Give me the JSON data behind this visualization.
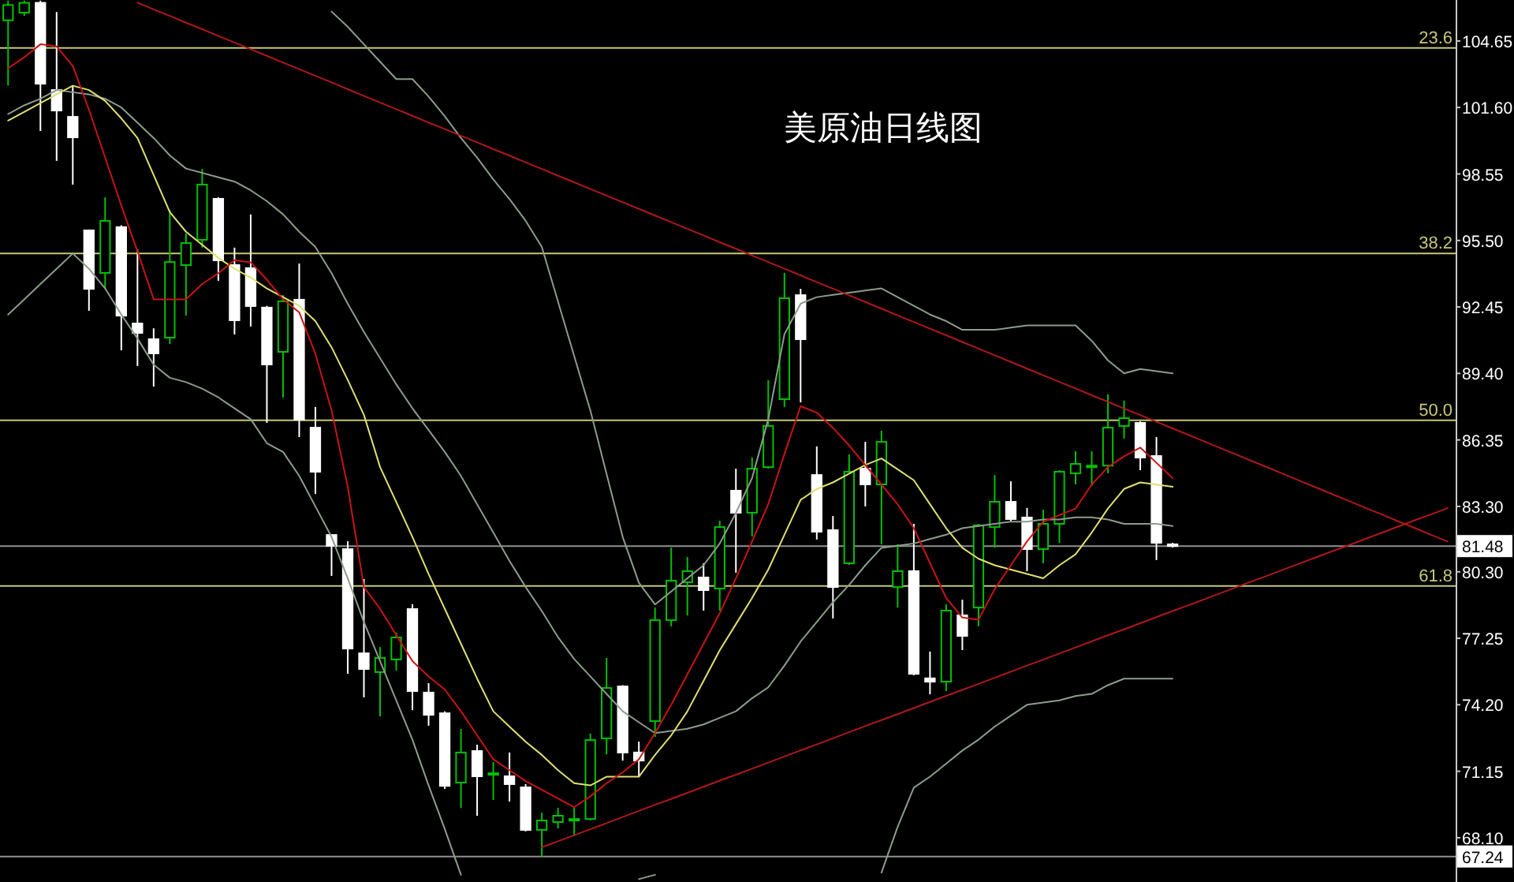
{
  "chart_data": {
    "type": "candlestick",
    "title": "美原油日线图",
    "categories": [
      null,
      null,
      null,
      null,
      null,
      null,
      null,
      null,
      null,
      null,
      null,
      null,
      null,
      null,
      null,
      null,
      null,
      null,
      null,
      null,
      null,
      null,
      null,
      null,
      null,
      null,
      null,
      null,
      null,
      null,
      null,
      null,
      null,
      null,
      null,
      null,
      null,
      null,
      null,
      null,
      null,
      null,
      null,
      null,
      null,
      null,
      null,
      null,
      null,
      null,
      null,
      null,
      null,
      null,
      null,
      null,
      null,
      null,
      null,
      null,
      null,
      null,
      null,
      null,
      null,
      null,
      null,
      null,
      null,
      null,
      null,
      null,
      null,
      null,
      null,
      null,
      null,
      null,
      null,
      null,
      null,
      null,
      null,
      null,
      null,
      null,
      null,
      null,
      null,
      null
    ],
    "ohlc": [
      [
        105.6,
        106.5,
        102.6,
        106.3
      ],
      [
        105.95,
        106.5,
        105.8,
        106.4
      ],
      [
        106.4,
        106.5,
        100.52,
        102.69
      ],
      [
        102.4,
        105.98,
        99.15,
        101.46
      ],
      [
        101.17,
        102.62,
        98.06,
        100.23
      ],
      [
        95.96,
        96.0,
        92.27,
        93.28
      ],
      [
        94.01,
        97.48,
        93.28,
        96.4
      ],
      [
        96.11,
        96.2,
        90.46,
        92.05
      ],
      [
        91.69,
        95.09,
        89.74,
        91.26
      ],
      [
        90.97,
        91.47,
        88.8,
        90.32
      ],
      [
        91.04,
        96.9,
        90.75,
        94.51
      ],
      [
        94.37,
        95.82,
        92.05,
        95.38
      ],
      [
        95.53,
        98.78,
        95.17,
        98.06
      ],
      [
        97.41,
        97.48,
        93.65,
        94.59
      ],
      [
        94.37,
        95.17,
        91.19,
        91.84
      ],
      [
        94.23,
        96.69,
        91.55,
        92.49
      ],
      [
        92.42,
        92.5,
        87.13,
        89.81
      ],
      [
        90.39,
        92.99,
        88.29,
        92.71
      ],
      [
        92.78,
        94.44,
        86.48,
        87.28
      ],
      [
        86.91,
        87.86,
        83.87,
        84.89
      ],
      [
        81.99,
        82.0,
        80.11,
        81.49
      ],
      [
        81.34,
        81.7,
        75.62,
        76.78
      ],
      [
        76.56,
        79.97,
        74.54,
        75.84
      ],
      [
        75.7,
        76.85,
        73.67,
        76.35
      ],
      [
        76.28,
        77.51,
        75.77,
        77.29
      ],
      [
        78.59,
        78.81,
        73.96,
        74.83
      ],
      [
        74.76,
        75.19,
        73.24,
        73.74
      ],
      [
        73.81,
        73.9,
        70.34,
        70.48
      ],
      [
        70.63,
        73.09,
        69.47,
        72.01
      ],
      [
        72.08,
        72.37,
        69.11,
        70.92
      ],
      [
        70.99,
        71.57,
        69.83,
        71.06
      ],
      [
        70.92,
        72.01,
        69.76,
        70.56
      ],
      [
        70.41,
        70.56,
        68.39,
        68.46
      ],
      [
        68.46,
        69.25,
        67.24,
        68.89
      ],
      [
        68.82,
        69.47,
        68.53,
        69.11
      ],
      [
        68.89,
        69.47,
        68.17,
        68.96
      ],
      [
        68.96,
        72.87,
        68.89,
        72.58
      ],
      [
        72.66,
        76.35,
        71.93,
        74.97
      ],
      [
        75.04,
        75.1,
        71.64,
        72.01
      ],
      [
        72.01,
        72.51,
        70.92,
        71.64
      ],
      [
        73.45,
        78.66,
        72.73,
        78.08
      ],
      [
        78.08,
        81.41,
        77.8,
        79.89
      ],
      [
        79.82,
        80.98,
        78.3,
        80.33
      ],
      [
        80.04,
        80.69,
        78.52,
        79.46
      ],
      [
        79.53,
        82.64,
        78.52,
        82.35
      ],
      [
        84.02,
        85.03,
        80.26,
        83.01
      ],
      [
        83.01,
        85.54,
        81.92,
        85.03
      ],
      [
        85.1,
        89.09,
        85.03,
        86.99
      ],
      [
        88.22,
        94.01,
        87.86,
        92.85
      ],
      [
        92.99,
        93.28,
        88.07,
        90.97
      ],
      [
        84.74,
        86.05,
        81.78,
        82.14
      ],
      [
        82.21,
        82.86,
        78.16,
        79.6
      ],
      [
        80.69,
        85.68,
        80.62,
        84.89
      ],
      [
        85.03,
        86.26,
        83.3,
        84.31
      ],
      [
        84.31,
        86.77,
        81.56,
        86.26
      ],
      [
        79.6,
        81.56,
        78.66,
        80.33
      ],
      [
        80.33,
        82.5,
        75.55,
        75.62
      ],
      [
        75.41,
        76.64,
        74.68,
        75.26
      ],
      [
        75.26,
        78.81,
        74.83,
        78.52
      ],
      [
        78.3,
        79.02,
        76.71,
        77.36
      ],
      [
        78.66,
        82.5,
        77.8,
        82.43
      ],
      [
        82.35,
        84.74,
        81.41,
        83.51
      ],
      [
        83.51,
        84.45,
        82.6,
        82.72
      ],
      [
        82.79,
        83.23,
        80.33,
        81.34
      ],
      [
        81.34,
        83.15,
        80.69,
        82.5
      ],
      [
        82.5,
        84.96,
        81.63,
        84.89
      ],
      [
        84.82,
        85.83,
        84.31,
        85.25
      ],
      [
        85.1,
        85.83,
        84.24,
        85.17
      ],
      [
        85.17,
        88.44,
        84.82,
        86.91
      ],
      [
        86.99,
        88.15,
        86.41,
        87.35
      ],
      [
        87.13,
        87.2,
        84.96,
        85.54
      ],
      [
        85.61,
        86.48,
        80.84,
        81.63
      ],
      [
        81.56,
        81.63,
        81.41,
        81.48
      ],
      null,
      null,
      null,
      null,
      null,
      null,
      null,
      null,
      null,
      null,
      null,
      null,
      null,
      null,
      null,
      null,
      null
    ],
    "colors": [
      "#00c000",
      "#00c000",
      "#ffffff",
      "#ffffff",
      "#ffffff",
      "#ffffff",
      "#00c000",
      "#ffffff",
      "#ffffff",
      "#ffffff",
      "#00c000",
      "#00c000",
      "#00c000",
      "#ffffff",
      "#ffffff",
      "#ffffff",
      "#ffffff",
      "#00c000",
      "#ffffff",
      "#ffffff",
      "#ffffff",
      "#ffffff",
      "#ffffff",
      "#00c000",
      "#00c000",
      "#ffffff",
      "#ffffff",
      "#ffffff",
      "#00c000",
      "#ffffff",
      "#00c000",
      "#ffffff",
      "#ffffff",
      "#00c000",
      "#00c000",
      "#00c000",
      "#00c000",
      "#00c000",
      "#ffffff",
      "#ffffff",
      "#00c000",
      "#00c000",
      "#00c000",
      "#ffffff",
      "#00c000",
      "#ffffff",
      "#00c000",
      "#00c000",
      "#00c000",
      "#ffffff",
      "#ffffff",
      "#ffffff",
      "#00c000",
      "#ffffff",
      "#00c000",
      "#00c000",
      "#ffffff",
      "#ffffff",
      "#00c000",
      "#ffffff",
      "#00c000",
      "#00c000",
      "#ffffff",
      "#ffffff",
      "#00c000",
      "#00c000",
      "#00c000",
      "#00c000",
      "#00c000",
      "#00c000",
      "#ffffff",
      "#ffffff",
      "#ffffff",
      null,
      null,
      null,
      null,
      null,
      null,
      null,
      null,
      null,
      null,
      null,
      null,
      null,
      null,
      null,
      null,
      null
    ],
    "series": [
      {
        "type": "line",
        "color": "#8c9c8c",
        "values": [
          null,
          null,
          null,
          null,
          null,
          null,
          null,
          null,
          null,
          null,
          null,
          null,
          null,
          null,
          null,
          null,
          null,
          null,
          null,
          null,
          106.0,
          105.3,
          104.5,
          103.7,
          102.9,
          102.9,
          102.1,
          101.2,
          100.2,
          99.3,
          98.3,
          97.4,
          96.4,
          95.2,
          92.7,
          90.2,
          87.7,
          84.8,
          81.9,
          79.8,
          78.8,
          79.4,
          80.0,
          80.6,
          81.6,
          83.0,
          84.6,
          87.3,
          91.2,
          92.6,
          92.9,
          93.0,
          93.1,
          93.2,
          93.3,
          92.9,
          92.5,
          92.1,
          91.8,
          91.4,
          91.4,
          91.4,
          91.5,
          91.6,
          91.6,
          91.6,
          91.6,
          90.9,
          90.0,
          89.4,
          89.6,
          89.5,
          89.4,
          null,
          null,
          null,
          null,
          null,
          null,
          null,
          null,
          null,
          null,
          null,
          null,
          null,
          null,
          null,
          null,
          null
        ]
      },
      {
        "type": "line",
        "color": "#8c9c8c",
        "values": [
          101.3,
          101.7,
          102.0,
          102.4,
          102.3,
          102.2,
          102.0,
          101.6,
          100.9,
          100.2,
          99.4,
          98.8,
          98.6,
          98.4,
          98.2,
          97.8,
          97.3,
          96.7,
          95.9,
          95.2,
          94.0,
          92.6,
          91.3,
          90.1,
          88.9,
          87.8,
          86.8,
          85.8,
          84.7,
          83.4,
          82.1,
          80.8,
          79.6,
          78.5,
          77.3,
          76.3,
          75.5,
          74.7,
          73.9,
          73.4,
          72.9,
          73.0,
          73.1,
          73.3,
          73.6,
          73.9,
          74.5,
          75.0,
          76.0,
          77.1,
          78.0,
          78.9,
          79.7,
          80.6,
          81.4,
          81.5,
          81.6,
          81.8,
          82.0,
          82.3,
          82.4,
          82.5,
          82.6,
          82.6,
          82.7,
          82.7,
          82.8,
          82.8,
          82.7,
          82.5,
          82.5,
          82.5,
          82.4,
          null,
          null,
          null,
          null,
          null,
          null,
          null,
          null,
          null,
          null,
          null,
          null,
          null,
          null,
          null,
          null,
          null
        ]
      },
      {
        "type": "line",
        "color": "#8c9c8c",
        "values": [
          92.1,
          92.8,
          93.5,
          94.2,
          94.9,
          94.2,
          93.3,
          92.1,
          91.0,
          89.8,
          89.2,
          89.0,
          88.7,
          88.3,
          87.8,
          87.3,
          86.2,
          85.8,
          84.7,
          83.3,
          81.9,
          80.0,
          78.0,
          76.2,
          74.4,
          72.6,
          70.5,
          68.5,
          66.4,
          null,
          null,
          null,
          null,
          null,
          null,
          null,
          null,
          null,
          null,
          66.2,
          66.4,
          null,
          null,
          null,
          null,
          null,
          null,
          null,
          null,
          null,
          null,
          null,
          null,
          null,
          66.5,
          68.6,
          70.4,
          70.9,
          71.5,
          72.1,
          72.6,
          73.2,
          73.7,
          74.2,
          74.3,
          74.4,
          74.6,
          74.7,
          75.1,
          75.4,
          75.4,
          75.4,
          75.4,
          null,
          null,
          null,
          null,
          null,
          null,
          null,
          null,
          null,
          null,
          null,
          null,
          null,
          null,
          null,
          null,
          null
        ]
      },
      {
        "type": "line",
        "color": "#e0e070",
        "values": [
          101.0,
          101.4,
          101.8,
          102.2,
          102.6,
          102.4,
          101.9,
          101.1,
          100.2,
          98.5,
          96.8,
          95.9,
          95.3,
          94.7,
          94.2,
          93.8,
          93.3,
          92.9,
          92.5,
          91.8,
          90.6,
          89.1,
          87.5,
          85.1,
          83.5,
          81.9,
          80.2,
          78.6,
          77.0,
          75.4,
          73.9,
          73.2,
          72.5,
          71.9,
          71.2,
          70.6,
          70.5,
          70.9,
          70.9,
          70.9,
          71.9,
          72.8,
          73.9,
          75.3,
          76.7,
          77.9,
          79.1,
          80.4,
          82.0,
          83.6,
          84.1,
          84.4,
          84.8,
          85.2,
          85.5,
          85.0,
          84.5,
          83.4,
          82.3,
          81.4,
          80.9,
          80.6,
          80.4,
          80.2,
          80.0,
          80.6,
          81.1,
          82.1,
          83.2,
          84.1,
          84.4,
          84.3,
          84.2,
          null,
          null,
          null,
          null,
          null,
          null,
          null,
          null,
          null,
          null,
          null,
          null,
          null,
          null,
          null,
          null,
          null
        ]
      },
      {
        "type": "line",
        "color": "#c81414",
        "values": [
          103.4,
          103.9,
          104.5,
          104.4,
          103.5,
          101.5,
          99.3,
          97.1,
          95.0,
          92.8,
          92.8,
          92.8,
          93.5,
          94.0,
          94.6,
          94.5,
          93.7,
          92.8,
          92.2,
          90.3,
          87.7,
          84.2,
          79.6,
          78.6,
          77.4,
          76.2,
          75.5,
          74.9,
          73.9,
          72.8,
          71.7,
          71.2,
          70.7,
          70.3,
          69.9,
          69.5,
          70.0,
          70.6,
          71.1,
          71.7,
          72.9,
          74.2,
          75.6,
          77.0,
          78.4,
          80.0,
          81.7,
          83.4,
          85.7,
          87.9,
          87.6,
          86.9,
          86.1,
          85.2,
          84.3,
          83.4,
          82.3,
          80.7,
          79.1,
          78.2,
          78.1,
          79.5,
          80.6,
          81.7,
          82.6,
          82.9,
          83.2,
          84.3,
          85.1,
          85.6,
          86.0,
          85.3,
          84.6,
          null,
          null,
          null,
          null,
          null,
          null,
          null,
          null,
          null,
          null,
          null,
          null,
          null,
          null,
          null,
          null,
          null
        ]
      },
      {
        "type": "line",
        "color": "#b01818",
        "values": [
          null,
          null,
          null,
          null,
          null,
          null,
          null,
          null,
          106.41,
          106.1,
          105.8,
          105.49,
          105.19,
          104.88,
          104.58,
          104.27,
          103.97,
          103.66,
          103.36,
          103.05,
          102.75,
          102.44,
          102.13,
          101.83,
          101.52,
          101.22,
          100.91,
          100.61,
          100.3,
          100.0,
          99.69,
          99.39,
          99.08,
          98.78,
          98.47,
          98.17,
          97.86,
          97.56,
          97.25,
          96.95,
          96.64,
          96.34,
          96.03,
          95.73,
          95.42,
          95.12,
          94.81,
          94.51,
          94.2,
          93.9,
          93.59,
          93.29,
          92.98,
          92.68,
          92.37,
          92.06,
          91.76,
          91.45,
          91.15,
          90.84,
          90.54,
          90.23,
          89.93,
          89.62,
          89.32,
          89.01,
          88.71,
          88.4,
          88.1,
          87.79,
          87.49,
          87.18,
          86.88,
          86.57,
          86.27,
          85.96,
          85.66,
          85.35,
          85.05,
          84.74,
          84.43,
          84.13,
          83.82,
          83.52,
          83.21,
          82.91,
          82.6,
          82.3,
          81.99,
          81.69
        ]
      },
      {
        "type": "line",
        "color": "#b01818",
        "values": [
          null,
          null,
          null,
          null,
          null,
          null,
          null,
          null,
          null,
          null,
          null,
          null,
          null,
          null,
          null,
          null,
          null,
          null,
          null,
          null,
          null,
          null,
          null,
          null,
          null,
          null,
          null,
          null,
          null,
          null,
          null,
          null,
          null,
          67.66,
          67.94,
          68.22,
          68.49,
          68.77,
          69.05,
          69.33,
          69.61,
          69.88,
          70.16,
          70.44,
          70.72,
          70.99,
          71.27,
          71.55,
          71.83,
          72.11,
          72.38,
          72.66,
          72.94,
          73.22,
          73.5,
          73.77,
          74.05,
          74.33,
          74.61,
          74.88,
          75.16,
          75.44,
          75.72,
          76.0,
          76.27,
          76.55,
          76.83,
          77.11,
          77.39,
          77.66,
          77.94,
          78.22,
          78.5,
          78.77,
          79.05,
          79.33,
          79.61,
          79.89,
          80.16,
          80.44,
          80.72,
          81.0,
          81.28,
          81.55,
          81.83,
          82.11,
          82.39,
          82.67,
          82.94,
          83.22
        ]
      }
    ],
    "ylim": [
      66.07,
      106.53
    ],
    "yticks": [
      {
        "value": 104.65,
        "label": "104.65"
      },
      {
        "value": 101.6,
        "label": "101.60"
      },
      {
        "value": 98.55,
        "label": "98.55"
      },
      {
        "value": 95.5,
        "label": "95.50"
      },
      {
        "value": 92.45,
        "label": "92.45"
      },
      {
        "value": 89.4,
        "label": "89.40"
      },
      {
        "value": 86.35,
        "label": "86.35"
      },
      {
        "value": 83.3,
        "label": "83.30"
      },
      {
        "value": 80.3,
        "label": "80.30"
      },
      {
        "value": 77.25,
        "label": "77.25"
      },
      {
        "value": 74.2,
        "label": "74.20"
      },
      {
        "value": 71.15,
        "label": "71.15"
      },
      {
        "value": 68.1,
        "label": "68.10"
      }
    ],
    "ref_lines": [
      {
        "axis": "y",
        "value": 104.33,
        "color": "#c8c878"
      },
      {
        "axis": "y",
        "value": 94.9,
        "color": "#c8c878"
      },
      {
        "axis": "y",
        "value": 87.25,
        "color": "#c8c878"
      },
      {
        "axis": "y",
        "value": 79.65,
        "color": "#c8c878"
      },
      {
        "axis": "y",
        "value": 81.48,
        "label": "81.48",
        "color": "#909090"
      },
      {
        "axis": "y",
        "value": 67.24,
        "label": "67.24",
        "color": "#909090"
      }
    ],
    "annotations": [
      {
        "text": "23.6",
        "y": 104.33
      },
      {
        "text": "38.2",
        "y": 94.9
      },
      {
        "text": "50.0",
        "y": 87.25
      },
      {
        "text": "61.8",
        "y": 79.65
      }
    ],
    "tick_labels": "y"
  }
}
